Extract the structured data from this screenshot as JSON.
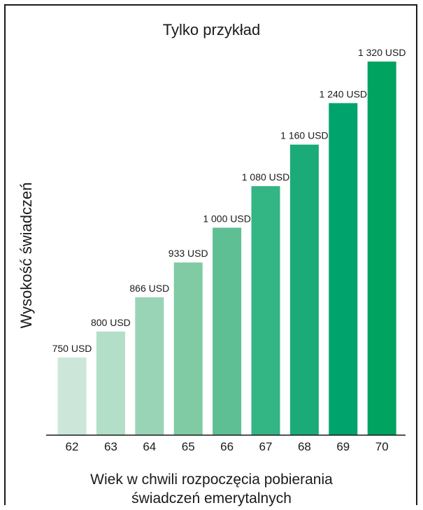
{
  "chart_data": {
    "type": "bar",
    "title": "Tylko przykład",
    "ylabel": "Wysokość świadczeń",
    "xlabel_lines": [
      "Wiek w chwili rozpoczęcia pobierania",
      "świadczeń emerytalnych"
    ],
    "categories": [
      "62",
      "63",
      "64",
      "65",
      "66",
      "67",
      "68",
      "69",
      "70"
    ],
    "values": [
      750,
      800,
      866,
      933,
      1000,
      1080,
      1160,
      1240,
      1320
    ],
    "data_labels": [
      "750 USD",
      "800 USD",
      "866 USD",
      "933 USD",
      "1 000 USD",
      "1 080 USD",
      "1 160 USD",
      "1 240 USD",
      "1 320 USD"
    ],
    "colors": [
      "#cce7da",
      "#b3dec8",
      "#99d4b6",
      "#80caa4",
      "#5ebf94",
      "#33b584",
      "#1aab78",
      "#00a36c",
      "#00a460"
    ],
    "grid": false,
    "legend": "none"
  }
}
